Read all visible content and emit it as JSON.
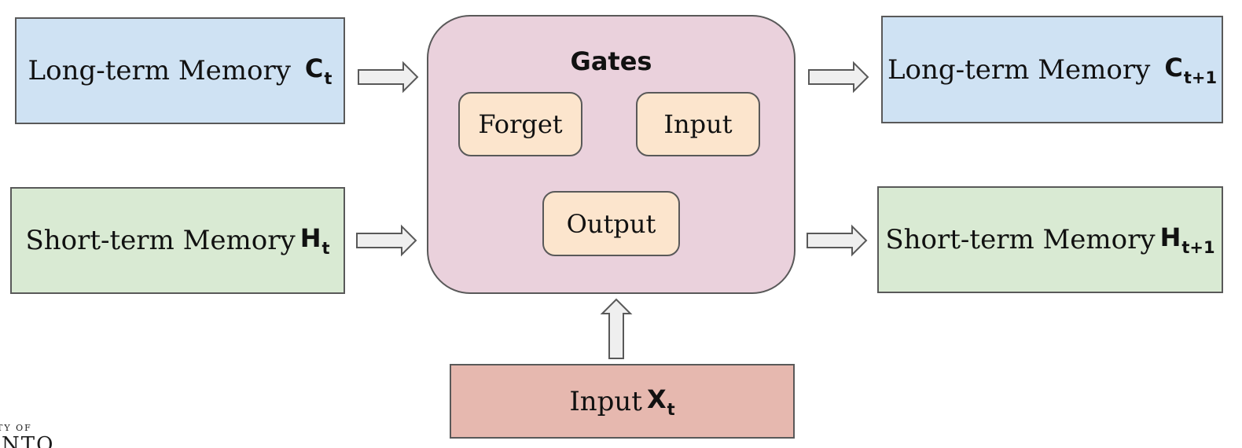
{
  "diagram": {
    "inputs": {
      "long_term": {
        "label": "Long-term Memory",
        "var": "C",
        "sub": "t"
      },
      "short_term": {
        "label": "Short-term Memory",
        "var": "H",
        "sub": "t"
      }
    },
    "gates": {
      "title": "Gates",
      "forget": "Forget",
      "input": "Input",
      "output": "Output"
    },
    "outputs": {
      "long_term": {
        "label": "Long-term Memory",
        "var": "C",
        "sub": "t+1"
      },
      "short_term": {
        "label": "Short-term Memory",
        "var": "H",
        "sub": "t+1"
      }
    },
    "current_input": {
      "label": "Input",
      "var": "X",
      "sub": "t"
    }
  },
  "logo": {
    "small_text": "TY OF",
    "big_text": "NTO"
  },
  "colors": {
    "long_term_fill": "#cfe2f3",
    "short_term_fill": "#d9ead3",
    "gates_fill": "#ead1dc",
    "gate_item_fill": "#fce5cd",
    "input_fill": "#e6b8af",
    "border": "#595959",
    "arrow_fill": "#efefef"
  }
}
